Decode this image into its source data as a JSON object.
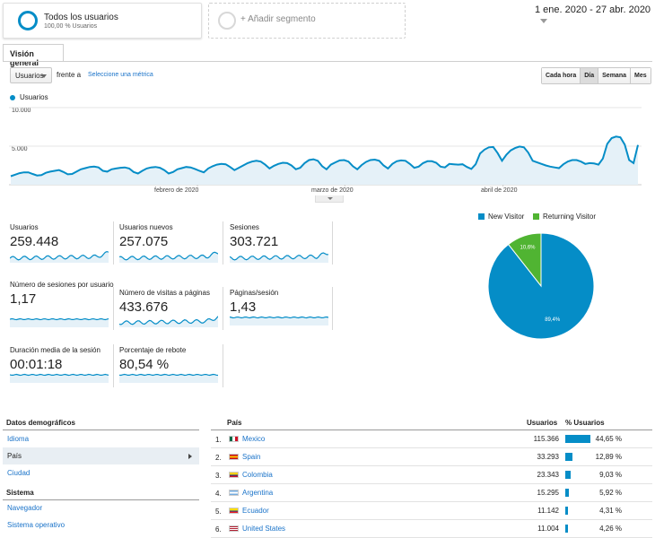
{
  "segments": {
    "active_title": "Todos los usuarios",
    "active_sub": "100,00 % Usuarios",
    "add_label": "+ Añadir segmento"
  },
  "date_range": "1 ene. 2020 - 27 abr. 2020",
  "tab": "Visión general",
  "metric_select": "Usuarios",
  "vs_label": "frente a",
  "select_metric_link": "Seleccione una métrica",
  "granularity": [
    "Cada hora",
    "Día",
    "Semana",
    "Mes"
  ],
  "granularity_active": "Día",
  "chart_data": {
    "type": "line",
    "series_legend": "Usuarios",
    "y_ticks": [
      "10.000",
      "5.000"
    ],
    "ylim": [
      0,
      10000
    ],
    "x_labels": [
      "febrero de 2020",
      "marzo de 2020",
      "abril de 2020"
    ],
    "values": [
      1100,
      1300,
      1500,
      1600,
      1600,
      1400,
      1200,
      1250,
      1550,
      1700,
      1800,
      1900,
      1650,
      1350,
      1400,
      1700,
      2000,
      2150,
      2300,
      2350,
      2250,
      1800,
      1700,
      2000,
      2100,
      2200,
      2250,
      2100,
      1650,
      1450,
      1800,
      2100,
      2250,
      2300,
      2200,
      1900,
      1450,
      1650,
      2000,
      2150,
      2300,
      2250,
      2050,
      1800,
      1600,
      2100,
      2400,
      2600,
      2700,
      2650,
      2300,
      1900,
      2200,
      2500,
      2800,
      3000,
      3100,
      3000,
      2600,
      2100,
      2450,
      2700,
      2850,
      2800,
      2500,
      2000,
      2200,
      2800,
      3200,
      3300,
      3100,
      2400,
      2000,
      2600,
      2900,
      3150,
      3200,
      3000,
      2400,
      2000,
      2550,
      2950,
      3200,
      3250,
      3100,
      2500,
      2100,
      2700,
      3050,
      3150,
      3100,
      2700,
      2200,
      2350,
      2800,
      3050,
      3050,
      2850,
      2350,
      2250,
      2700,
      2650,
      2600,
      2650,
      2300,
      2050,
      2650,
      4050,
      4550,
      4850,
      4900,
      4100,
      3100,
      3900,
      4450,
      4750,
      4950,
      4850,
      4150,
      3100,
      2900,
      2700,
      2500,
      2350,
      2250,
      2150,
      2650,
      3000,
      3200,
      3200,
      3000,
      2700,
      2800,
      2750,
      2600,
      3400,
      5300,
      6050,
      6250,
      6150,
      5200,
      3200,
      2800,
      5150
    ]
  },
  "metrics": [
    {
      "label": "Usuarios",
      "value": "259.448"
    },
    {
      "label": "Usuarios nuevos",
      "value": "257.075"
    },
    {
      "label": "Sesiones",
      "value": "303.721"
    },
    {
      "label": "Número de sesiones por usuario",
      "value": "1,17"
    },
    {
      "label": "Número de visitas a páginas",
      "value": "433.676"
    },
    {
      "label": "Páginas/sesión",
      "value": "1,43"
    },
    {
      "label": "Duración media de la sesión",
      "value": "00:01:18"
    },
    {
      "label": "Porcentaje de rebote",
      "value": "80,54 %"
    }
  ],
  "pie": {
    "legend": [
      {
        "name": "New Visitor",
        "color": "#058dc7"
      },
      {
        "name": "Returning Visitor",
        "color": "#50b432"
      }
    ],
    "values": [
      89.4,
      10.6
    ],
    "labels": [
      "89,4%",
      "10,6%"
    ]
  },
  "side": {
    "demo_head": "Datos demográficos",
    "demo_items": [
      "Idioma",
      "País",
      "Ciudad"
    ],
    "active_item": "País",
    "system_head": "Sistema",
    "system_items": [
      "Navegador",
      "Sistema operativo"
    ]
  },
  "table": {
    "col_country": "País",
    "col_users": "Usuarios",
    "col_pct": "% Usuarios",
    "rows": [
      {
        "rank": "1.",
        "country": "Mexico",
        "users": "115.366",
        "pct": "44,65 %",
        "share": 44.65,
        "flag": "mx"
      },
      {
        "rank": "2.",
        "country": "Spain",
        "users": "33.293",
        "pct": "12,89 %",
        "share": 12.89,
        "flag": "es"
      },
      {
        "rank": "3.",
        "country": "Colombia",
        "users": "23.343",
        "pct": "9,03 %",
        "share": 9.03,
        "flag": "co"
      },
      {
        "rank": "4.",
        "country": "Argentina",
        "users": "15.295",
        "pct": "5,92 %",
        "share": 5.92,
        "flag": "ar"
      },
      {
        "rank": "5.",
        "country": "Ecuador",
        "users": "11.142",
        "pct": "4,31 %",
        "share": 4.31,
        "flag": "ec"
      },
      {
        "rank": "6.",
        "country": "United States",
        "users": "11.004",
        "pct": "4,26 %",
        "share": 4.26,
        "flag": "us"
      }
    ]
  }
}
